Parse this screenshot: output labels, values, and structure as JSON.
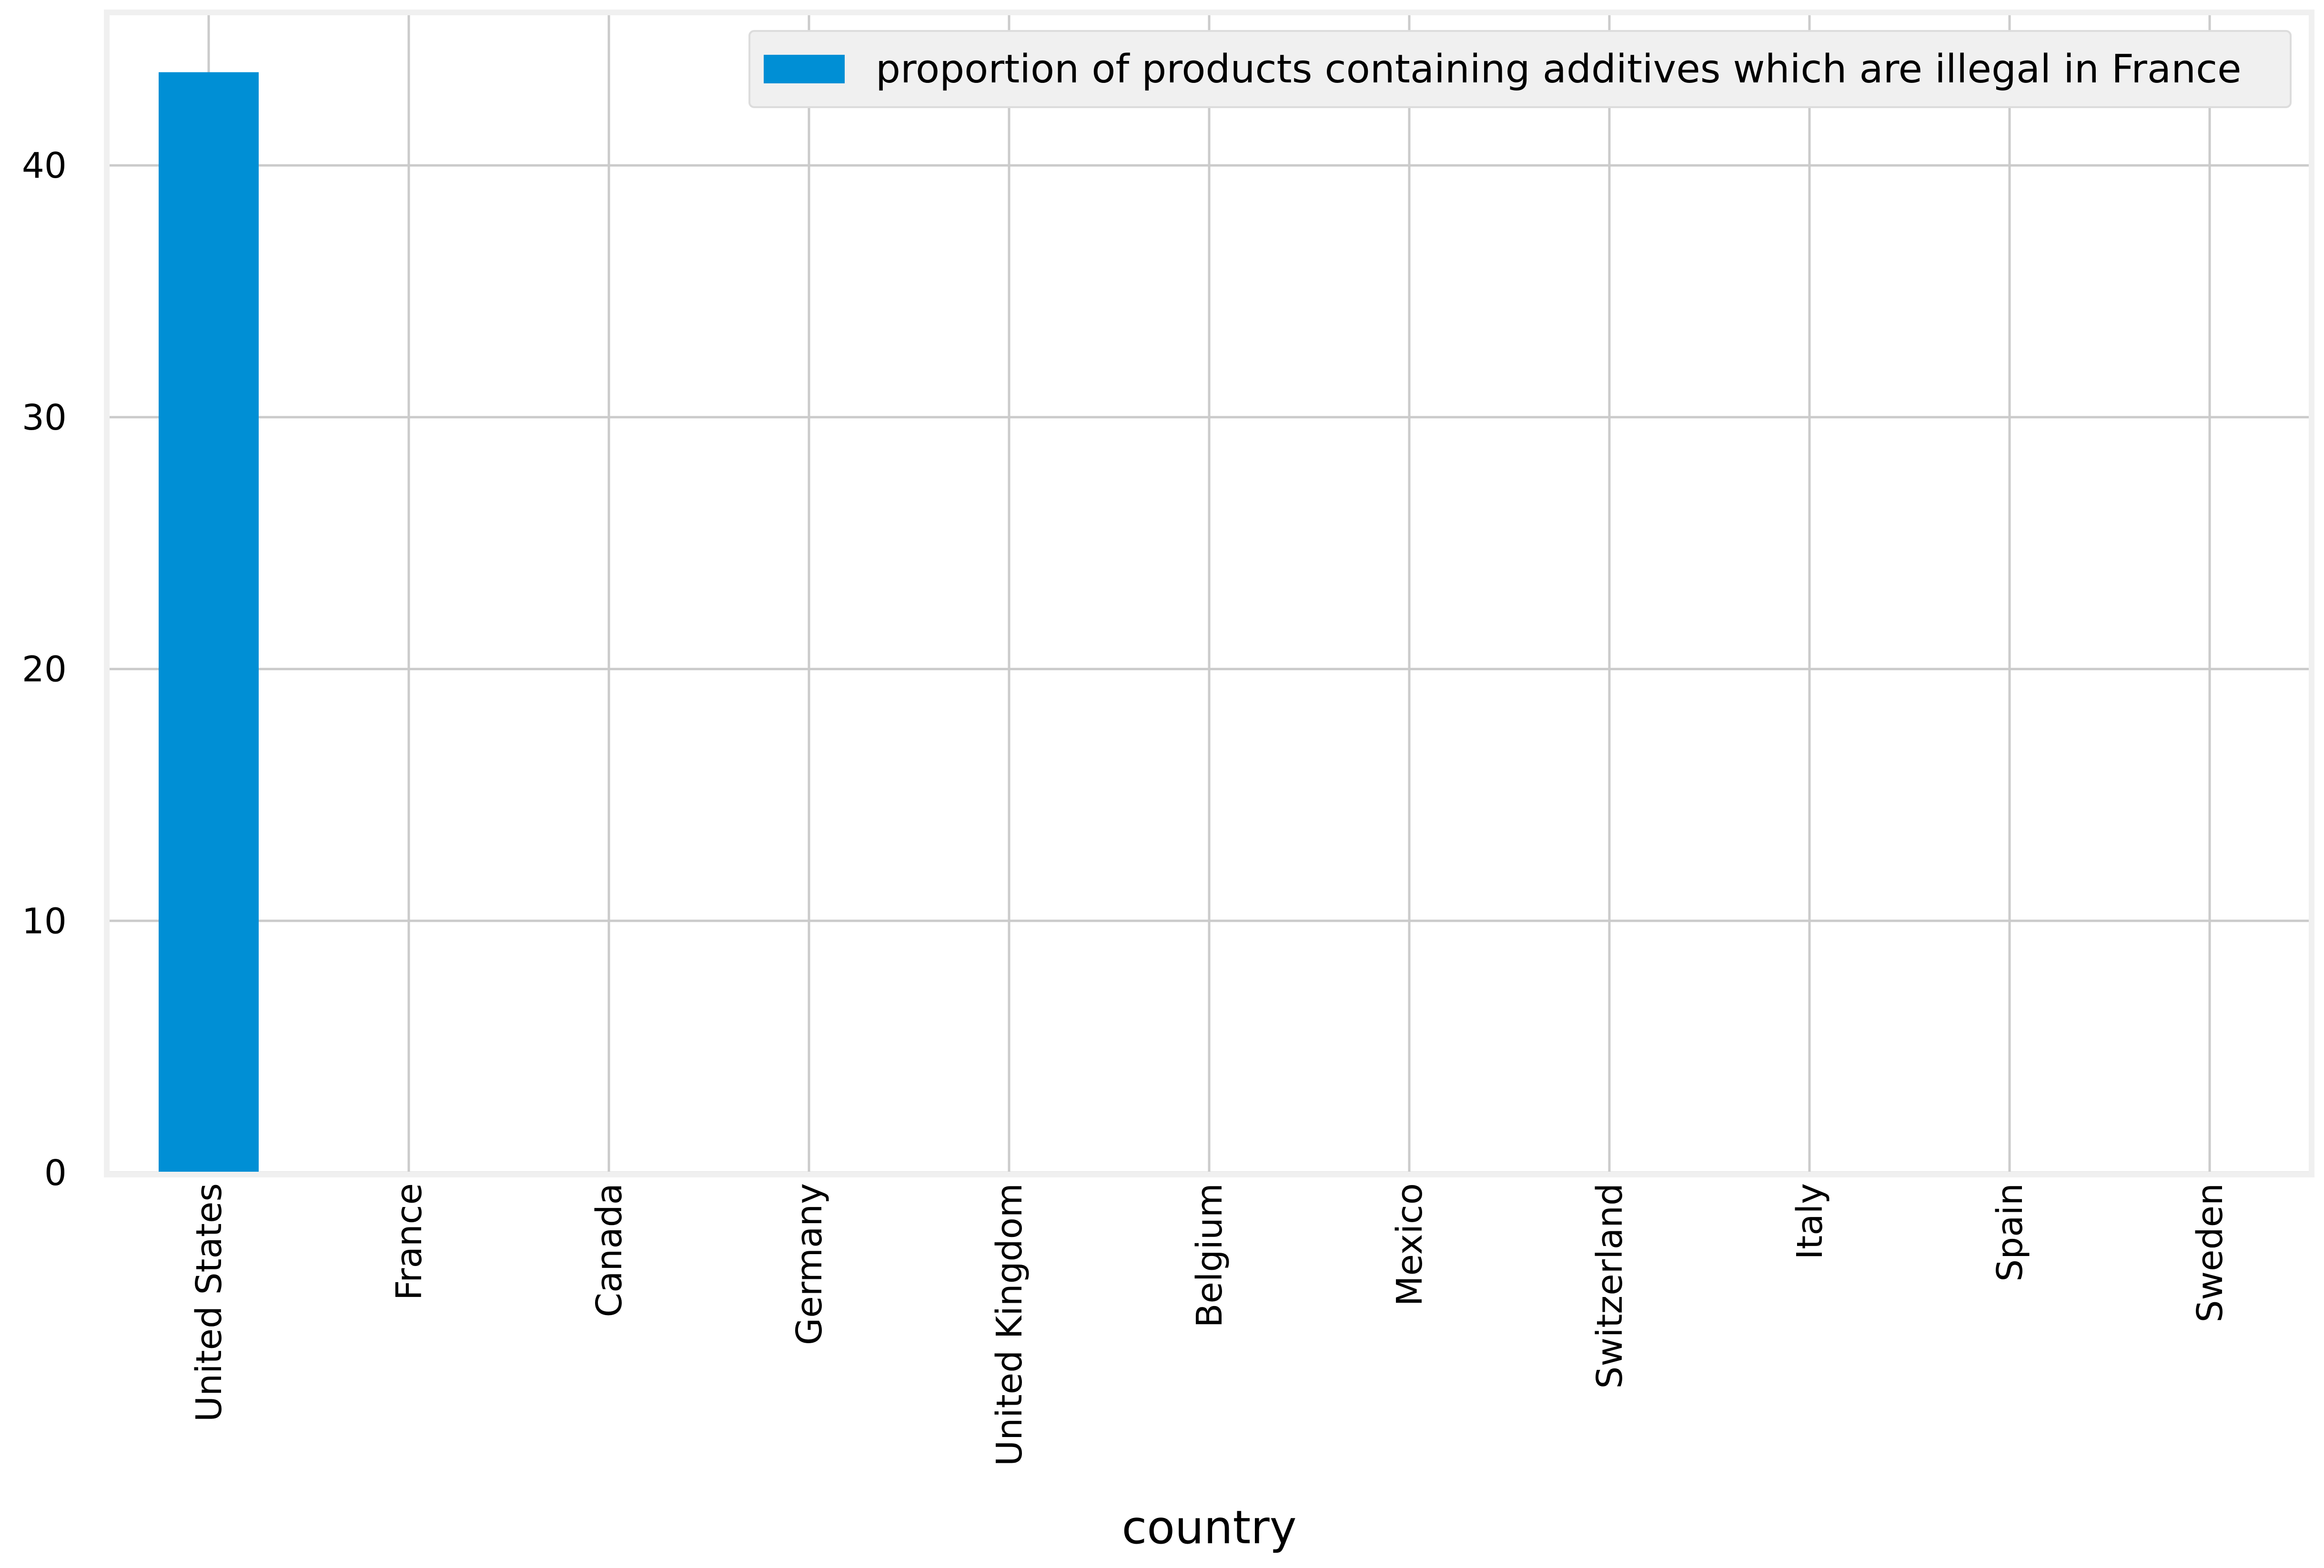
{
  "chart_data": {
    "type": "bar",
    "categories": [
      "United States",
      "France",
      "Canada",
      "Germany",
      "United Kingdom",
      "Belgium",
      "Mexico",
      "Switzerland",
      "Italy",
      "Spain",
      "Sweden"
    ],
    "series": [
      {
        "name": "proportion of products containing additives which are illegal in France",
        "values": [
          43.7,
          0,
          0,
          0,
          0,
          0,
          0,
          0,
          0,
          0,
          0
        ],
        "color": "#008fd5"
      }
    ],
    "xlabel": "country",
    "ylabel": "",
    "ylim": [
      0,
      46
    ],
    "yticks": [
      0,
      10,
      20,
      30,
      40
    ],
    "grid": true,
    "legend_position": "top-right",
    "style": {
      "background": "#ffffff",
      "grid_color": "#cbcbcb",
      "frame_color": "#f0f0f0",
      "legend_background": "#f0f0f0"
    }
  }
}
